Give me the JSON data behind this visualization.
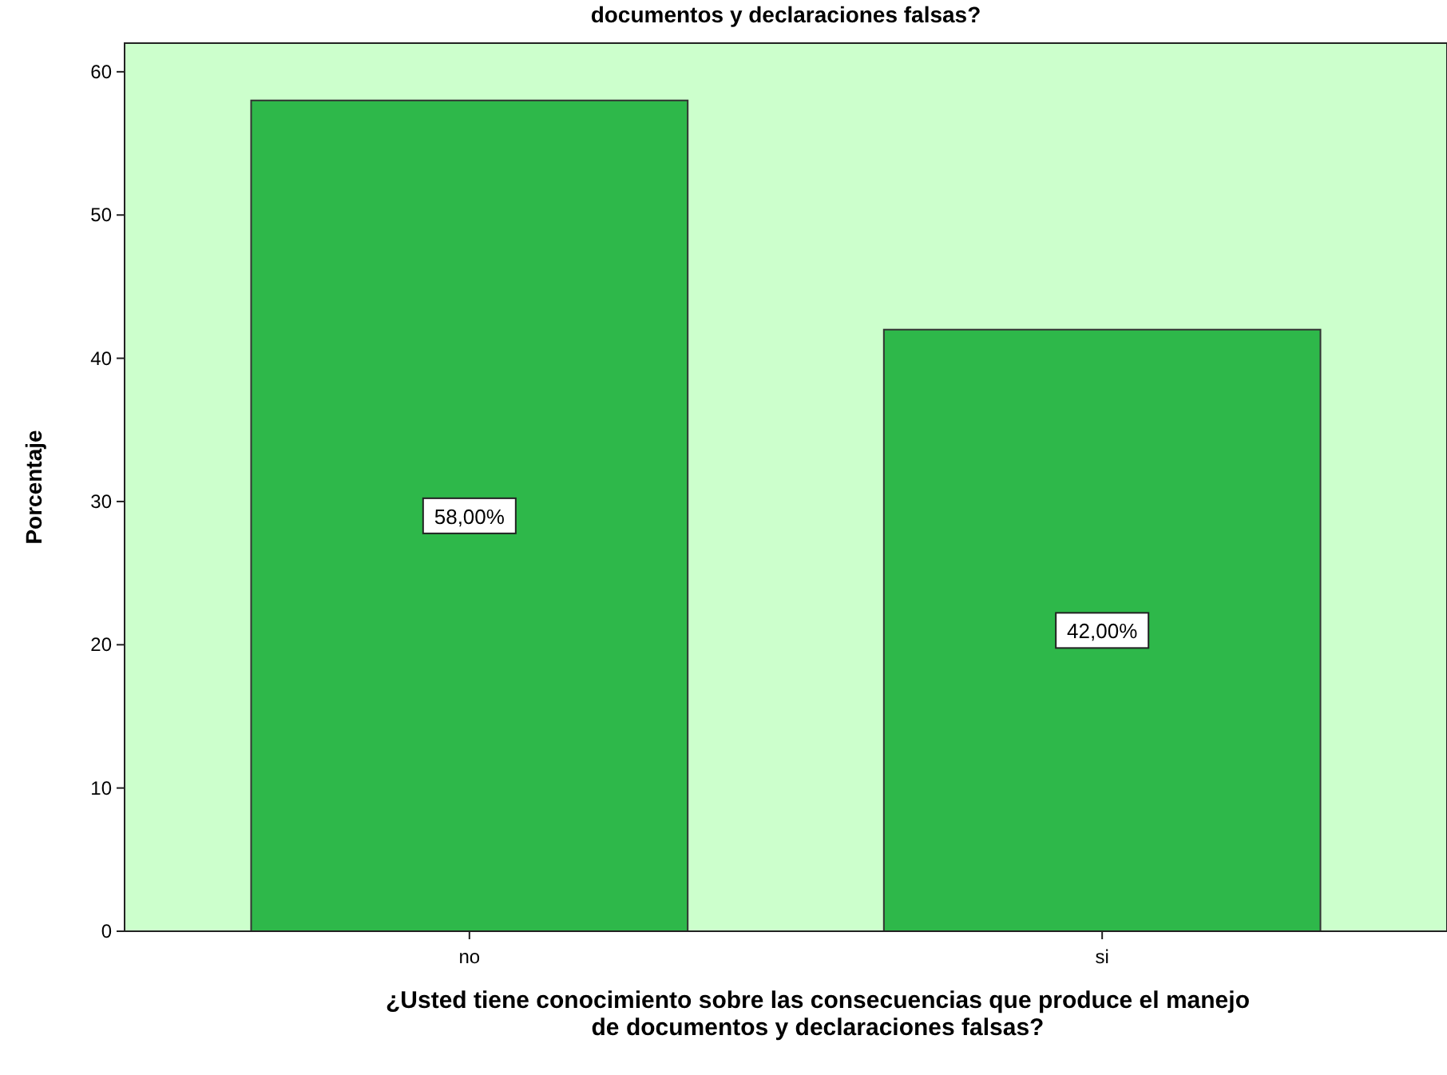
{
  "chart_data": {
    "type": "bar",
    "title": "documentos y declaraciones falsas?",
    "xlabel": "¿Usted tiene conocimiento sobre las consecuencias que produce el manejo\nde documentos y declaraciones falsas?",
    "ylabel": "Porcentaje",
    "categories": [
      "no",
      "si"
    ],
    "values": [
      58,
      42
    ],
    "value_labels": [
      "58,00%",
      "42,00%"
    ],
    "color": "#2eb84a",
    "ylim": [
      0,
      62
    ],
    "yticks": [
      0,
      10,
      20,
      30,
      40,
      50,
      60
    ],
    "grid": false
  }
}
